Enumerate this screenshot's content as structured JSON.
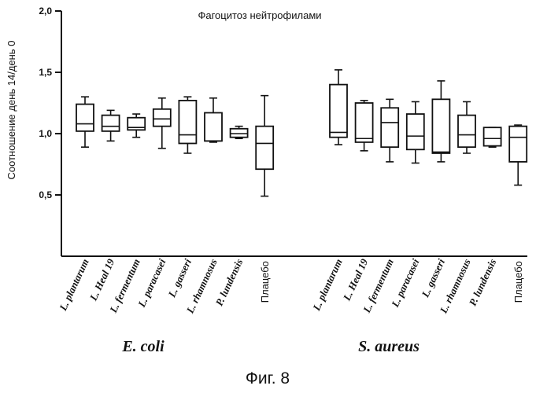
{
  "chart_data": {
    "type": "boxplot",
    "title": "Фагоцитоз нейтрофилами",
    "ylabel": "Соотношение день 14/день 0",
    "xlabel": "",
    "ylim": [
      0,
      2.0
    ],
    "yticks": [
      "0,5",
      "1,0",
      "1,5",
      "2,0"
    ],
    "ytick_values": [
      0.5,
      1.0,
      1.5,
      2.0
    ],
    "grid": false,
    "groups": [
      {
        "name": "E. coli",
        "boxes": [
          {
            "label": "L. plantarum",
            "min": 0.89,
            "q1": 1.02,
            "median": 1.08,
            "q3": 1.24,
            "max": 1.3
          },
          {
            "label": "L. Heal 19",
            "min": 0.94,
            "q1": 1.02,
            "median": 1.06,
            "q3": 1.15,
            "max": 1.19
          },
          {
            "label": "L. fermentum",
            "min": 0.97,
            "q1": 1.03,
            "median": 1.05,
            "q3": 1.13,
            "max": 1.16
          },
          {
            "label": "L. paracasei",
            "min": 0.88,
            "q1": 1.06,
            "median": 1.12,
            "q3": 1.2,
            "max": 1.29
          },
          {
            "label": "L. gasseri",
            "min": 0.84,
            "q1": 0.92,
            "median": 0.99,
            "q3": 1.27,
            "max": 1.3
          },
          {
            "label": "L. rhamnosus",
            "min": 0.93,
            "q1": 0.94,
            "median": 0.94,
            "q3": 1.17,
            "max": 1.29
          },
          {
            "label": "P. lundensis",
            "min": 0.96,
            "q1": 0.97,
            "median": 1.0,
            "q3": 1.04,
            "max": 1.06
          },
          {
            "label": "Плацебо",
            "min": 0.49,
            "q1": 0.71,
            "median": 0.92,
            "q3": 1.06,
            "max": 1.31
          }
        ]
      },
      {
        "name": "S. aureus",
        "boxes": [
          {
            "label": "L. plantarum",
            "min": 0.91,
            "q1": 0.97,
            "median": 1.01,
            "q3": 1.4,
            "max": 1.52
          },
          {
            "label": "L. Heal 19",
            "min": 0.86,
            "q1": 0.93,
            "median": 0.96,
            "q3": 1.25,
            "max": 1.27
          },
          {
            "label": "L. fermentum",
            "min": 0.77,
            "q1": 0.89,
            "median": 1.09,
            "q3": 1.21,
            "max": 1.28
          },
          {
            "label": "L. paracasei",
            "min": 0.76,
            "q1": 0.87,
            "median": 0.98,
            "q3": 1.16,
            "max": 1.26
          },
          {
            "label": "L. gasseri",
            "min": 0.77,
            "q1": 0.84,
            "median": 0.85,
            "q3": 1.28,
            "max": 1.43
          },
          {
            "label": "L. rhamnosus",
            "min": 0.84,
            "q1": 0.89,
            "median": 0.99,
            "q3": 1.15,
            "max": 1.26
          },
          {
            "label": "P. lundensis",
            "min": 0.89,
            "q1": 0.9,
            "median": 0.96,
            "q3": 1.05,
            "max": 1.05
          },
          {
            "label": "Плацебо",
            "min": 0.58,
            "q1": 0.77,
            "median": 0.97,
            "q3": 1.06,
            "max": 1.07
          }
        ]
      }
    ]
  },
  "figure_caption": "Фиг. 8"
}
